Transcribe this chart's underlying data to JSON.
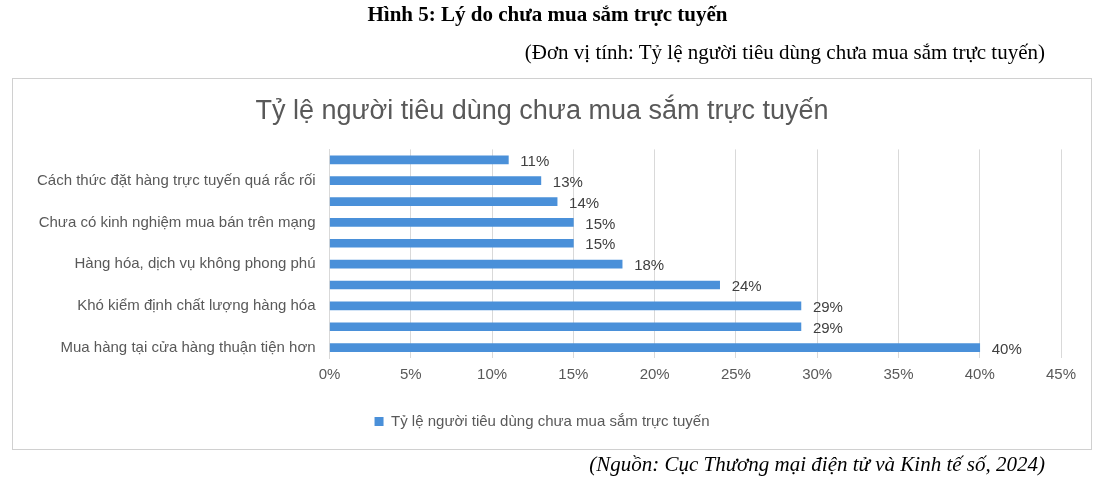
{
  "chart_data": {
    "type": "bar",
    "orientation": "horizontal",
    "title": "Tỷ lệ người tiêu dùng chưa mua sắm trực tuyến",
    "categories": [
      null,
      "Cách thức đặt hàng trực tuyến quá rắc rối",
      null,
      "Chưa có kinh nghiệm mua bán trên mạng",
      null,
      "Hàng hóa, dịch vụ không phong phú",
      null,
      "Khó kiểm định chất lượng hàng hóa",
      null,
      "Mua hàng tại cửa hàng thuận tiện hơn"
    ],
    "series": [
      {
        "name": "Tỷ lệ người tiêu dùng chưa mua sắm trực tuyến",
        "color": "#4a90d9",
        "values": [
          11,
          13,
          14,
          15,
          15,
          18,
          24,
          29,
          29,
          40
        ],
        "value_labels": [
          "11%",
          "13%",
          "14%",
          "15%",
          "15%",
          "18%",
          "24%",
          "29%",
          "29%",
          "40%"
        ]
      }
    ],
    "xlim": [
      0,
      45
    ],
    "xticks": [
      {
        "value": 0,
        "label": "0%"
      },
      {
        "value": 5,
        "label": "5%"
      },
      {
        "value": 10,
        "label": "10%"
      },
      {
        "value": 15,
        "label": "15%"
      },
      {
        "value": 20,
        "label": "20%"
      },
      {
        "value": 25,
        "label": "25%"
      },
      {
        "value": 30,
        "label": "30%"
      },
      {
        "value": 35,
        "label": "35%"
      },
      {
        "value": 40,
        "label": "40%"
      },
      {
        "value": 45,
        "label": "45%"
      }
    ],
    "grid": "x",
    "legend": "bottom",
    "annotations": [
      "Hình 5: Lý do chưa mua sắm trực tuyến",
      "(Đơn vị tính: Tỷ lệ người tiêu dùng chưa mua sắm trực tuyến)",
      "(Nguồn: Cục Thương mại điện tử và Kinh tế số, 2024)"
    ]
  }
}
